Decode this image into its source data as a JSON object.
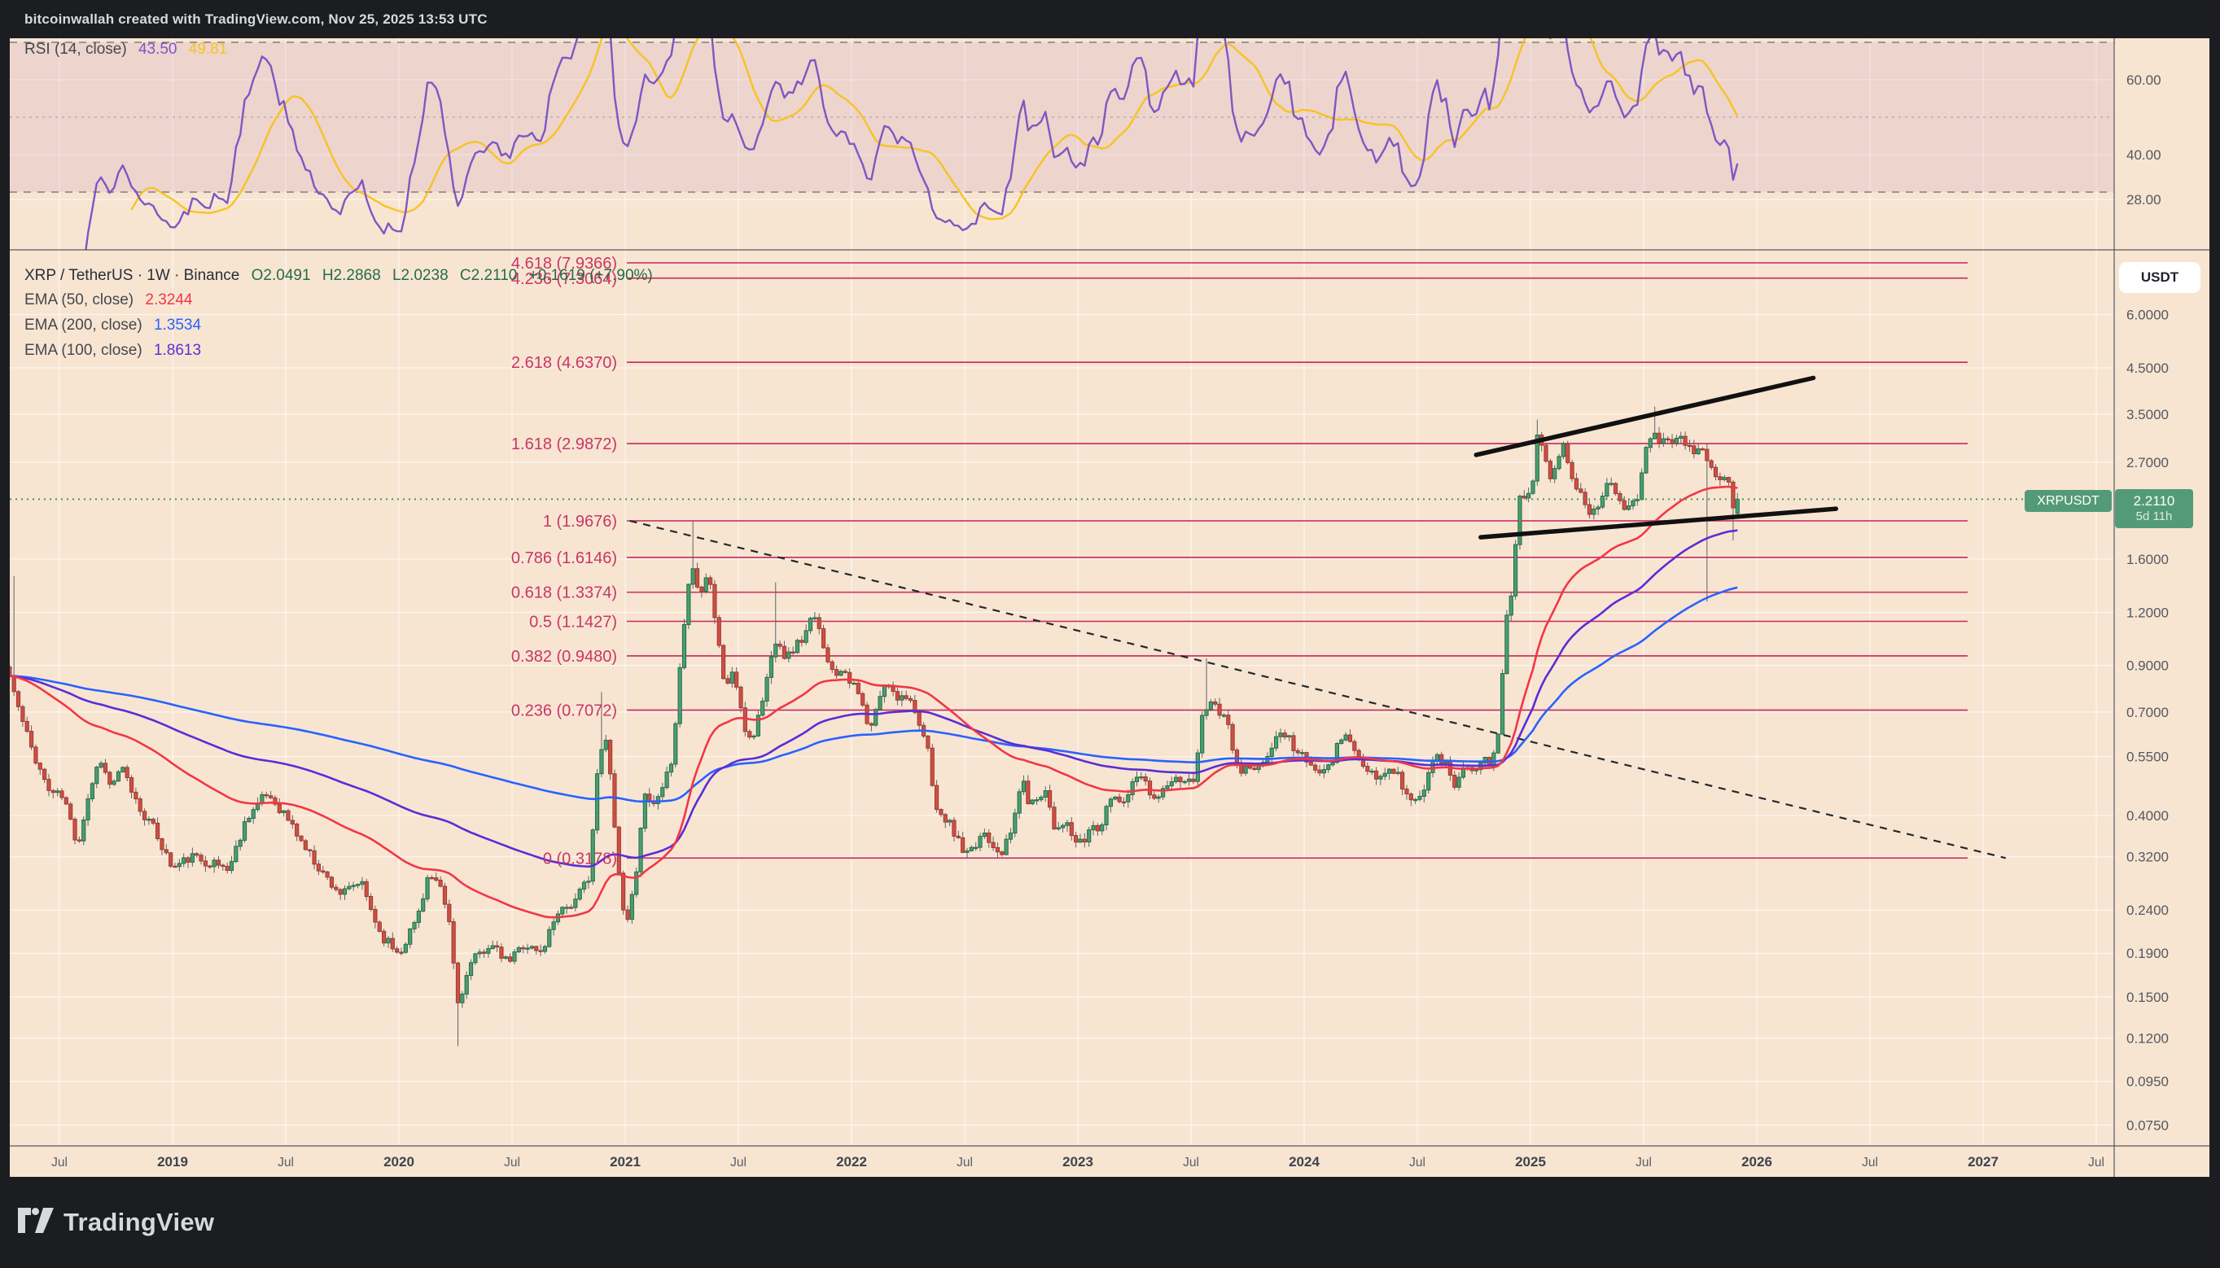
{
  "header": {
    "title": "bitcoinwallah created with TradingView.com, Nov 25, 2025 13:53 UTC"
  },
  "colors": {
    "background": "#f7e5d2",
    "frame": "#1c1d21",
    "candle_up": "#4a9e6f",
    "candle_up_border": "#256c49",
    "candle_down": "#cf4f43",
    "candle_down_border": "#9c3a31",
    "wick": "#5f6368",
    "fib": "#cb3564",
    "ema50": "#f23645",
    "ema100": "#5b2dd6",
    "ema200": "#2962ff",
    "rsi": "#7e57c2",
    "rsi_signal": "#f7c324",
    "rsi_band": "rgba(155,70,165,0.10)",
    "trendline": "#111111",
    "price_line": "#3d9960",
    "badge_green": "#539b78",
    "grid": "rgba(255,255,255,0.75)",
    "axis_text": "#55585f"
  },
  "rsi_pane": {
    "legend": {
      "name": "RSI (14, close)",
      "value_main": "43.50",
      "value_signal": "49.81"
    },
    "ticks": [
      {
        "value": 60,
        "label": "60.00"
      },
      {
        "value": 40,
        "label": "40.00"
      },
      {
        "value": 28,
        "label": "28.00"
      }
    ]
  },
  "main_pane": {
    "legend": {
      "symbol": "XRP / TetherUS · 1W · Binance",
      "open": "O2.0491",
      "high": "H2.2868",
      "low": "L2.0238",
      "close": "C2.2110",
      "change": "+0.1619 (+7.90%)"
    },
    "ema_legends": [
      {
        "label": "EMA (50, close)",
        "value": "2.3244"
      },
      {
        "label": "EMA (200, close)",
        "value": "1.3534"
      },
      {
        "label": "EMA (100, close)",
        "value": "1.8613"
      }
    ]
  },
  "price_axis": {
    "currency_button": "USDT",
    "price_badge": {
      "price": "2.2110",
      "countdown": "5d 11h"
    },
    "symbol_badge": "XRPUSDT",
    "ticks": [
      {
        "value": 6.0,
        "label": "6.0000"
      },
      {
        "value": 4.5,
        "label": "4.5000"
      },
      {
        "value": 3.5,
        "label": "3.5000"
      },
      {
        "value": 2.7,
        "label": "2.7000"
      },
      {
        "value": 1.6,
        "label": "1.6000"
      },
      {
        "value": 1.2,
        "label": "1.2000"
      },
      {
        "value": 0.9,
        "label": "0.9000"
      },
      {
        "value": 0.7,
        "label": "0.7000"
      },
      {
        "value": 0.55,
        "label": "0.5500"
      },
      {
        "value": 0.4,
        "label": "0.4000"
      },
      {
        "value": 0.32,
        "label": "0.3200"
      },
      {
        "value": 0.24,
        "label": "0.2400"
      },
      {
        "value": 0.19,
        "label": "0.1900"
      },
      {
        "value": 0.15,
        "label": "0.1500"
      },
      {
        "value": 0.12,
        "label": "0.1200"
      },
      {
        "value": 0.095,
        "label": "0.0950"
      },
      {
        "value": 0.075,
        "label": "0.0750"
      }
    ]
  },
  "time_axis": {
    "labels": [
      {
        "text": "Jul",
        "t": 2018.5,
        "bold": false
      },
      {
        "text": "2019",
        "t": 2019,
        "bold": true
      },
      {
        "text": "Jul",
        "t": 2019.5,
        "bold": false
      },
      {
        "text": "2020",
        "t": 2020,
        "bold": true
      },
      {
        "text": "Jul",
        "t": 2020.5,
        "bold": false
      },
      {
        "text": "2021",
        "t": 2021,
        "bold": true
      },
      {
        "text": "Jul",
        "t": 2021.5,
        "bold": false
      },
      {
        "text": "2022",
        "t": 2022,
        "bold": true
      },
      {
        "text": "Jul",
        "t": 2022.5,
        "bold": false
      },
      {
        "text": "2023",
        "t": 2023,
        "bold": true
      },
      {
        "text": "Jul",
        "t": 2023.5,
        "bold": false
      },
      {
        "text": "2024",
        "t": 2024,
        "bold": true
      },
      {
        "text": "Jul",
        "t": 2024.5,
        "bold": false
      },
      {
        "text": "2025",
        "t": 2025,
        "bold": true
      },
      {
        "text": "Jul",
        "t": 2025.5,
        "bold": false
      },
      {
        "text": "2026",
        "t": 2026,
        "bold": true
      },
      {
        "text": "Jul",
        "t": 2026.5,
        "bold": false
      },
      {
        "text": "2027",
        "t": 2027,
        "bold": true
      },
      {
        "text": "Jul",
        "t": 2027.5,
        "bold": false
      }
    ]
  },
  "footer": {
    "brand": "TradingView"
  },
  "chart_data": [
    {
      "type": "line",
      "pane": "rsi",
      "title": "RSI (14, close)",
      "period": 14,
      "series": [
        {
          "name": "RSI",
          "last": 43.5
        },
        {
          "name": "RSI smoothing MA",
          "last": 49.81
        }
      ],
      "levels": {
        "overbought": 70,
        "midline": 50,
        "oversold": 30
      },
      "y_ticks": [
        60,
        40,
        28
      ],
      "legend_position": "top-left"
    },
    {
      "type": "candlestick",
      "pane": "main",
      "symbol": "XRP / TetherUS",
      "interval": "1W",
      "exchange": "Binance",
      "price_scale": "log",
      "x_range": [
        2018.28,
        2027.58
      ],
      "last_bar": {
        "open": 2.0491,
        "high": 2.2868,
        "low": 2.0238,
        "close": 2.211,
        "change": 0.1619,
        "change_pct": 7.9
      },
      "current_price": 2.211,
      "y_ticks": [
        6.0,
        4.5,
        3.5,
        2.7,
        1.6,
        1.2,
        0.9,
        0.7,
        0.55,
        0.4,
        0.32,
        0.24,
        0.19,
        0.15,
        0.12,
        0.095,
        0.075
      ],
      "close_anchors": [
        [
          2018.28,
          0.85
        ],
        [
          2018.33,
          0.68
        ],
        [
          2018.38,
          0.57
        ],
        [
          2018.45,
          0.46
        ],
        [
          2018.52,
          0.44
        ],
        [
          2018.58,
          0.34
        ],
        [
          2018.63,
          0.45
        ],
        [
          2018.68,
          0.55
        ],
        [
          2018.72,
          0.47
        ],
        [
          2018.78,
          0.51
        ],
        [
          2018.85,
          0.42
        ],
        [
          2018.92,
          0.37
        ],
        [
          2019.0,
          0.3
        ],
        [
          2019.08,
          0.32
        ],
        [
          2019.17,
          0.31
        ],
        [
          2019.25,
          0.3
        ],
        [
          2019.33,
          0.4
        ],
        [
          2019.42,
          0.45
        ],
        [
          2019.5,
          0.4
        ],
        [
          2019.58,
          0.34
        ],
        [
          2019.67,
          0.29
        ],
        [
          2019.75,
          0.26
        ],
        [
          2019.83,
          0.28
        ],
        [
          2019.92,
          0.21
        ],
        [
          2020.0,
          0.19
        ],
        [
          2020.08,
          0.23
        ],
        [
          2020.13,
          0.29
        ],
        [
          2020.18,
          0.27
        ],
        [
          2020.22,
          0.23
        ],
        [
          2020.26,
          0.145
        ],
        [
          2020.32,
          0.18
        ],
        [
          2020.4,
          0.2
        ],
        [
          2020.48,
          0.18
        ],
        [
          2020.55,
          0.2
        ],
        [
          2020.63,
          0.19
        ],
        [
          2020.7,
          0.24
        ],
        [
          2020.78,
          0.25
        ],
        [
          2020.84,
          0.29
        ],
        [
          2020.88,
          0.52
        ],
        [
          2020.91,
          0.62
        ],
        [
          2020.94,
          0.47
        ],
        [
          2020.97,
          0.3
        ],
        [
          2021.0,
          0.22
        ],
        [
          2021.04,
          0.27
        ],
        [
          2021.08,
          0.44
        ],
        [
          2021.13,
          0.42
        ],
        [
          2021.17,
          0.46
        ],
        [
          2021.21,
          0.56
        ],
        [
          2021.25,
          1.0
        ],
        [
          2021.29,
          1.57
        ],
        [
          2021.33,
          1.35
        ],
        [
          2021.37,
          1.5
        ],
        [
          2021.4,
          1.12
        ],
        [
          2021.44,
          0.8
        ],
        [
          2021.48,
          0.88
        ],
        [
          2021.52,
          0.65
        ],
        [
          2021.56,
          0.6
        ],
        [
          2021.6,
          0.72
        ],
        [
          2021.63,
          0.86
        ],
        [
          2021.67,
          1.07
        ],
        [
          2021.71,
          0.93
        ],
        [
          2021.75,
          1.0
        ],
        [
          2021.79,
          1.05
        ],
        [
          2021.83,
          1.18
        ],
        [
          2021.88,
          1.0
        ],
        [
          2021.92,
          0.85
        ],
        [
          2021.96,
          0.9
        ],
        [
          2022.0,
          0.82
        ],
        [
          2022.04,
          0.75
        ],
        [
          2022.08,
          0.62
        ],
        [
          2022.13,
          0.78
        ],
        [
          2022.17,
          0.82
        ],
        [
          2022.21,
          0.75
        ],
        [
          2022.25,
          0.78
        ],
        [
          2022.29,
          0.65
        ],
        [
          2022.33,
          0.6
        ],
        [
          2022.38,
          0.4
        ],
        [
          2022.42,
          0.39
        ],
        [
          2022.46,
          0.36
        ],
        [
          2022.5,
          0.32
        ],
        [
          2022.54,
          0.33
        ],
        [
          2022.58,
          0.37
        ],
        [
          2022.63,
          0.34
        ],
        [
          2022.67,
          0.33
        ],
        [
          2022.71,
          0.37
        ],
        [
          2022.75,
          0.49
        ],
        [
          2022.79,
          0.42
        ],
        [
          2022.83,
          0.45
        ],
        [
          2022.86,
          0.46
        ],
        [
          2022.9,
          0.37
        ],
        [
          2022.94,
          0.39
        ],
        [
          2022.98,
          0.35
        ],
        [
          2023.02,
          0.34
        ],
        [
          2023.06,
          0.38
        ],
        [
          2023.1,
          0.37
        ],
        [
          2023.15,
          0.45
        ],
        [
          2023.19,
          0.43
        ],
        [
          2023.23,
          0.46
        ],
        [
          2023.27,
          0.52
        ],
        [
          2023.31,
          0.46
        ],
        [
          2023.35,
          0.44
        ],
        [
          2023.4,
          0.47
        ],
        [
          2023.44,
          0.49
        ],
        [
          2023.48,
          0.47
        ],
        [
          2023.52,
          0.49
        ],
        [
          2023.55,
          0.71
        ],
        [
          2023.59,
          0.74
        ],
        [
          2023.63,
          0.7
        ],
        [
          2023.67,
          0.63
        ],
        [
          2023.71,
          0.5
        ],
        [
          2023.75,
          0.52
        ],
        [
          2023.79,
          0.5
        ],
        [
          2023.83,
          0.55
        ],
        [
          2023.88,
          0.61
        ],
        [
          2023.92,
          0.63
        ],
        [
          2023.96,
          0.57
        ],
        [
          2024.0,
          0.55
        ],
        [
          2024.04,
          0.5
        ],
        [
          2024.08,
          0.52
        ],
        [
          2024.13,
          0.55
        ],
        [
          2024.17,
          0.62
        ],
        [
          2024.21,
          0.6
        ],
        [
          2024.25,
          0.52
        ],
        [
          2024.29,
          0.5
        ],
        [
          2024.33,
          0.48
        ],
        [
          2024.38,
          0.52
        ],
        [
          2024.42,
          0.49
        ],
        [
          2024.46,
          0.44
        ],
        [
          2024.5,
          0.43
        ],
        [
          2024.54,
          0.48
        ],
        [
          2024.58,
          0.57
        ],
        [
          2024.63,
          0.52
        ],
        [
          2024.67,
          0.47
        ],
        [
          2024.71,
          0.53
        ],
        [
          2024.75,
          0.52
        ],
        [
          2024.79,
          0.54
        ],
        [
          2024.83,
          0.52
        ],
        [
          2024.86,
          0.64
        ],
        [
          2024.89,
          1.13
        ],
        [
          2024.92,
          1.4
        ],
        [
          2024.95,
          2.25
        ],
        [
          2024.98,
          2.17
        ],
        [
          2025.01,
          2.4
        ],
        [
          2025.03,
          3.05
        ],
        [
          2025.06,
          2.88
        ],
        [
          2025.09,
          2.5
        ],
        [
          2025.12,
          2.8
        ],
        [
          2025.15,
          2.95
        ],
        [
          2025.18,
          2.55
        ],
        [
          2025.21,
          2.35
        ],
        [
          2025.24,
          2.12
        ],
        [
          2025.27,
          2.08
        ],
        [
          2025.3,
          2.18
        ],
        [
          2025.33,
          2.35
        ],
        [
          2025.36,
          2.42
        ],
        [
          2025.39,
          2.28
        ],
        [
          2025.42,
          2.12
        ],
        [
          2025.45,
          2.18
        ],
        [
          2025.48,
          2.3
        ],
        [
          2025.51,
          2.85
        ],
        [
          2025.54,
          3.25
        ],
        [
          2025.57,
          3.05
        ],
        [
          2025.6,
          3.18
        ],
        [
          2025.63,
          2.98
        ],
        [
          2025.66,
          3.08
        ],
        [
          2025.69,
          2.95
        ],
        [
          2025.72,
          2.82
        ],
        [
          2025.75,
          2.98
        ],
        [
          2025.78,
          2.7
        ],
        [
          2025.81,
          2.55
        ],
        [
          2025.84,
          2.42
        ],
        [
          2025.87,
          2.55
        ],
        [
          2025.9,
          2.05
        ],
        [
          2025.92,
          2.211
        ]
      ],
      "wick_overrides": [
        {
          "t": 2018.29,
          "side": "high",
          "price": 1.46
        },
        {
          "t": 2020.26,
          "side": "low",
          "price": 0.115
        },
        {
          "t": 2020.9,
          "side": "high",
          "price": 0.78
        },
        {
          "t": 2021.29,
          "side": "high",
          "price": 1.9676
        },
        {
          "t": 2021.67,
          "side": "high",
          "price": 1.41
        },
        {
          "t": 2023.56,
          "side": "high",
          "price": 0.935
        },
        {
          "t": 2025.03,
          "side": "high",
          "price": 3.4
        },
        {
          "t": 2025.54,
          "side": "high",
          "price": 3.65
        },
        {
          "t": 2025.78,
          "side": "low",
          "price": 1.27
        },
        {
          "t": 2025.9,
          "side": "low",
          "price": 1.77
        }
      ],
      "fib_retracement": [
        {
          "ratio": "4.618",
          "price": 7.9366
        },
        {
          "ratio": "4.236",
          "price": 7.3064
        },
        {
          "ratio": "2.618",
          "price": 4.637
        },
        {
          "ratio": "1.618",
          "price": 2.9872
        },
        {
          "ratio": "1",
          "price": 1.9676
        },
        {
          "ratio": "0.786",
          "price": 1.6146
        },
        {
          "ratio": "0.618",
          "price": 1.3374
        },
        {
          "ratio": "0.5",
          "price": 1.1427
        },
        {
          "ratio": "0.382",
          "price": 0.948
        },
        {
          "ratio": "0.236",
          "price": 0.7072
        },
        {
          "ratio": "0",
          "price": 0.3178
        }
      ],
      "trendlines": [
        {
          "name": "descending-dashed",
          "style": "dashed",
          "from": [
            2021.02,
            1.9676
          ],
          "to": [
            2027.1,
            0.3178
          ]
        },
        {
          "name": "upper-resistance",
          "style": "solid",
          "from": [
            2024.76,
            2.81
          ],
          "to": [
            2026.25,
            4.26
          ]
        },
        {
          "name": "lower-support",
          "style": "solid",
          "from": [
            2024.78,
            1.8
          ],
          "to": [
            2026.35,
            2.1
          ]
        }
      ],
      "emas": [
        {
          "period": 50,
          "last": 2.3244
        },
        {
          "period": 100,
          "last": 1.8613
        },
        {
          "period": 200,
          "last": 1.3534
        }
      ]
    }
  ]
}
